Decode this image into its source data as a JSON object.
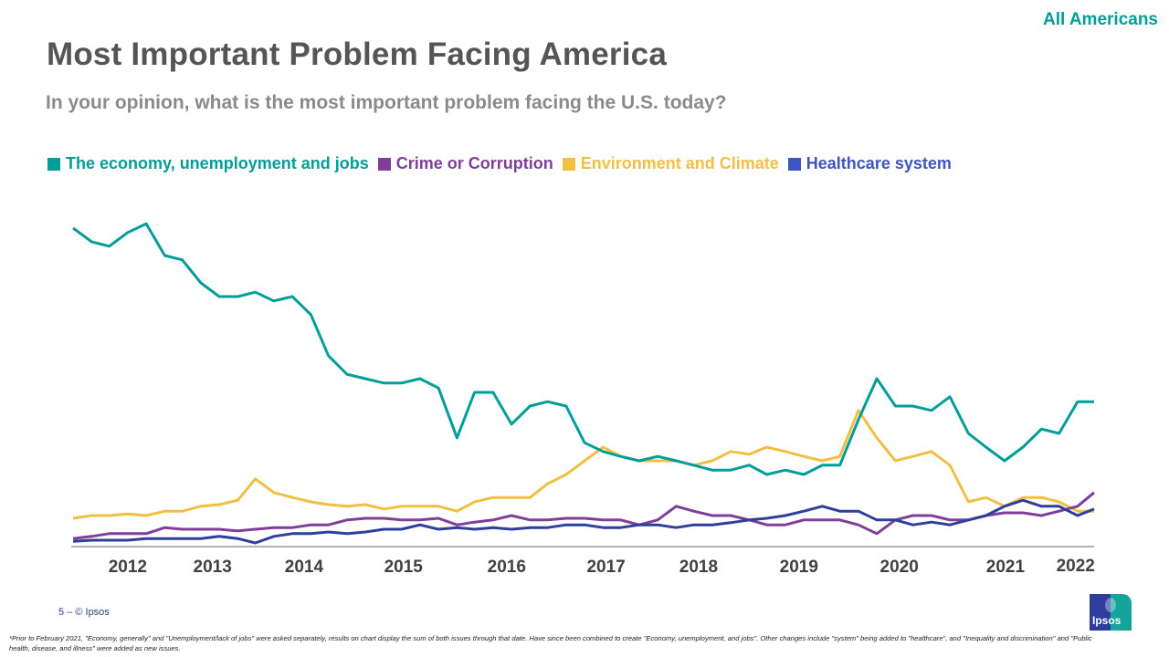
{
  "header": {
    "audience_tag": "All Americans",
    "title": "Most Important Problem Facing America",
    "subtitle": "In your opinion, what is the most important problem facing the U.S. today?"
  },
  "footer": {
    "page_label": "5 –  © Ipsos",
    "logo_text": "Ipsos",
    "footnote": "*Prior to February 2021, \"Economy, generally\" and \"Unemployment/lack of jobs\" were asked separately, results on chart display the sum of both issues through that date. Have since been combined to create \"Economy, unemployment, and jobs\". Other changes include \"system\" being added to \"healthcare\", and \"Inequality and discrimination\" and \"Public health, disease, and illness\" were added as new issues."
  },
  "chart_data": {
    "type": "line",
    "title": "",
    "xlabel": "",
    "ylabel": "",
    "y_axis_shown": false,
    "grid": false,
    "legend_position": "top-left",
    "ylim": [
      0,
      60
    ],
    "xlim": [
      2011.7,
      2022.2
    ],
    "x_ticks": [
      {
        "label": "2012",
        "value": 2012.28
      },
      {
        "label": "2013",
        "value": 2013.15
      },
      {
        "label": "2014",
        "value": 2014.09
      },
      {
        "label": "2015",
        "value": 2015.11
      },
      {
        "label": "2016",
        "value": 2016.17
      },
      {
        "label": "2017",
        "value": 2017.19
      },
      {
        "label": "2018",
        "value": 2018.14
      },
      {
        "label": "2019",
        "value": 2019.17
      },
      {
        "label": "2020",
        "value": 2020.2
      },
      {
        "label": "2021",
        "value": 2021.29
      },
      {
        "label": "2022",
        "value": 2022.01
      }
    ],
    "x": [
      2011.72,
      2011.91,
      2012.09,
      2012.28,
      2012.47,
      2012.66,
      2012.84,
      2013.03,
      2013.22,
      2013.41,
      2013.59,
      2013.78,
      2013.97,
      2014.16,
      2014.34,
      2014.53,
      2014.72,
      2014.91,
      2015.09,
      2015.28,
      2015.47,
      2015.66,
      2015.84,
      2016.03,
      2016.22,
      2016.41,
      2016.59,
      2016.78,
      2016.97,
      2017.16,
      2017.34,
      2017.53,
      2017.72,
      2017.91,
      2018.09,
      2018.28,
      2018.47,
      2018.66,
      2018.84,
      2019.03,
      2019.22,
      2019.41,
      2019.59,
      2019.78,
      2019.97,
      2020.16,
      2020.34,
      2020.53,
      2020.72,
      2020.91,
      2021.09,
      2021.28,
      2021.47,
      2021.66,
      2021.84,
      2022.03,
      2022.2
    ],
    "series": [
      {
        "name": "The economy, unemployment and jobs",
        "color": "#009d9a",
        "values": [
          58,
          55.5,
          54.7,
          57.2,
          58.8,
          53,
          52.2,
          48,
          45.5,
          45.5,
          46.3,
          44.7,
          45.5,
          42.2,
          34.7,
          31.3,
          30.5,
          29.7,
          29.7,
          30.5,
          28.8,
          19.7,
          28,
          28,
          22.2,
          25.5,
          26.3,
          25.5,
          18.8,
          17.2,
          16.3,
          15.5,
          16.3,
          15.5,
          14.7,
          13.8,
          13.8,
          14.7,
          13,
          13.8,
          13,
          14.7,
          14.7,
          23,
          30.5,
          25.5,
          25.5,
          24.7,
          27.2,
          20.5,
          18,
          15.5,
          18,
          21.3,
          20.5,
          26.3,
          26.3
        ]
      },
      {
        "name": "Crime or Corruption",
        "color": "#7f3f98",
        "values": [
          1.3,
          1.7,
          2.2,
          2.2,
          2.2,
          3.3,
          3,
          3,
          3,
          2.7,
          3,
          3.3,
          3.3,
          3.8,
          3.8,
          4.7,
          5,
          5,
          4.7,
          4.7,
          5,
          3.8,
          4.3,
          4.7,
          5.5,
          4.7,
          4.7,
          5,
          5,
          4.7,
          4.7,
          3.8,
          4.7,
          7.2,
          6.3,
          5.5,
          5.5,
          4.7,
          3.8,
          3.8,
          4.7,
          4.7,
          4.7,
          3.8,
          2.2,
          4.7,
          5.5,
          5.5,
          4.7,
          4.7,
          5.5,
          6,
          6,
          5.5,
          6.3,
          7.2,
          9.7
        ]
      },
      {
        "name": "Environment and Climate",
        "color": "#f1bf42",
        "values": [
          5,
          5.5,
          5.5,
          5.8,
          5.5,
          6.3,
          6.3,
          7.2,
          7.5,
          8.3,
          12.2,
          9.7,
          8.8,
          8,
          7.5,
          7.2,
          7.5,
          6.7,
          7.2,
          7.2,
          7.2,
          6.3,
          8,
          8.8,
          8.8,
          8.8,
          11.3,
          13,
          15.5,
          18,
          16.3,
          15.5,
          15.5,
          15.5,
          14.7,
          15.5,
          17.2,
          16.7,
          18,
          17.2,
          16.3,
          15.5,
          16.3,
          24.7,
          19.7,
          15.5,
          16.3,
          17.2,
          14.7,
          8,
          8.8,
          7.2,
          8.8,
          8.8,
          8,
          6.3,
          6.3
        ]
      },
      {
        "name": "Healthcare system",
        "color": "#2e3f9b",
        "legend_color": "#3d54c2",
        "values": [
          0.8,
          1,
          1,
          1,
          1.3,
          1.3,
          1.3,
          1.3,
          1.7,
          1.3,
          0.5,
          1.7,
          2.2,
          2.2,
          2.5,
          2.2,
          2.5,
          3,
          3,
          3.8,
          3,
          3.3,
          3,
          3.3,
          3,
          3.3,
          3.3,
          3.8,
          3.8,
          3.3,
          3.3,
          3.8,
          3.8,
          3.3,
          3.8,
          3.8,
          4.2,
          4.7,
          5,
          5.5,
          6.3,
          7.2,
          6.3,
          6.3,
          4.7,
          4.7,
          3.8,
          4.3,
          3.8,
          4.7,
          5.5,
          7.2,
          8.3,
          7.2,
          7.2,
          5.5,
          6.7
        ]
      }
    ]
  }
}
